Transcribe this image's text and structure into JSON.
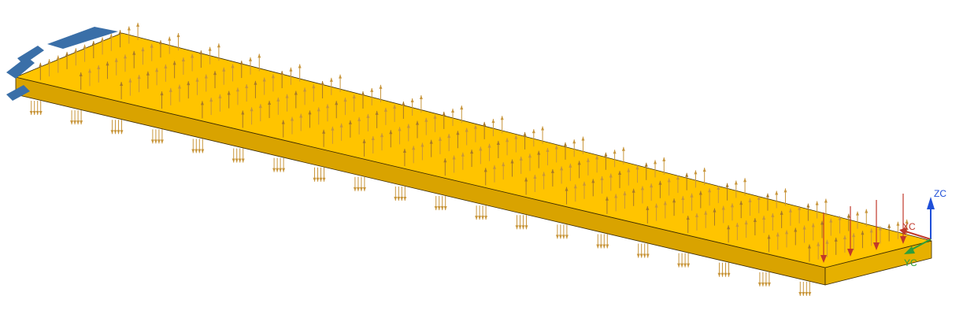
{
  "scene": {
    "description_free": true,
    "colors": {
      "background": "#ffffff",
      "plate_top": "#ffc400",
      "plate_front": "#d9a300",
      "plate_end": "#e6b000",
      "edge": "#3a2a00",
      "load_arrow": "#c8963c",
      "load_arrow_dark": "#a87a2a",
      "constraint": "#3a6fa8",
      "point_load": "#c0392b",
      "axis_z": "#1f4fd8",
      "axis_x": "#c0392b",
      "axis_y": "#2e9e3a"
    }
  },
  "csys": {
    "zc_label": "ZC",
    "xc_label": "XC",
    "yc_label": "YC"
  }
}
